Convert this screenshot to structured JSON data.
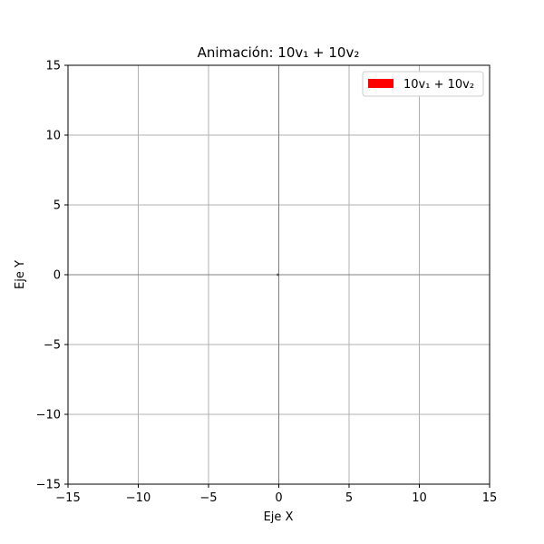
{
  "chart_data": {
    "type": "line",
    "title": "Animación: 10v₁ + 10v₂",
    "xlabel": "Eje X",
    "ylabel": "Eje Y",
    "xlim": [
      -15,
      15
    ],
    "ylim": [
      -15,
      15
    ],
    "xticks": [
      -15,
      -10,
      -5,
      0,
      5,
      10,
      15
    ],
    "yticks": [
      -15,
      -10,
      -5,
      0,
      5,
      10,
      15
    ],
    "xtick_labels": [
      "−15",
      "−10",
      "−5",
      "0",
      "5",
      "10",
      "15"
    ],
    "ytick_labels": [
      "−15",
      "−10",
      "−5",
      "0",
      "5",
      "10",
      "15"
    ],
    "grid": true,
    "legend_position": "top-right",
    "series": [
      {
        "name": "10v₁ + 10v₂",
        "color": "#ff0000",
        "vector": {
          "origin": [
            0,
            0
          ],
          "components": [
            0,
            0
          ]
        }
      }
    ],
    "reference_lines": {
      "x": 0,
      "y": 0,
      "color": "#808080"
    }
  }
}
